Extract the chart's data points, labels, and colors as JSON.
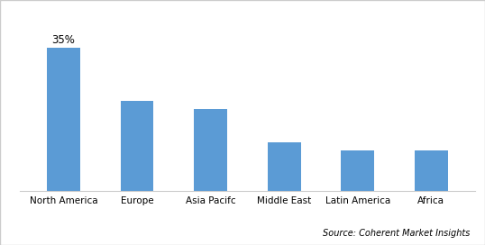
{
  "categories": [
    "North America",
    "Europe",
    "Asia Pacifc",
    "Middle East",
    "Latin America",
    "Africa"
  ],
  "values": [
    35,
    22,
    20,
    12,
    10,
    10
  ],
  "bar_color": "#5B9BD5",
  "annotation_label": "35%",
  "annotation_index": 0,
  "source_text": "Source: Coherent Market Insights",
  "ylim": [
    0,
    42
  ],
  "background_color": "#ffffff",
  "border_color": "#cccccc",
  "bar_width": 0.45,
  "label_fontsize": 7.5,
  "annotation_fontsize": 8.5,
  "source_fontsize": 7.0
}
